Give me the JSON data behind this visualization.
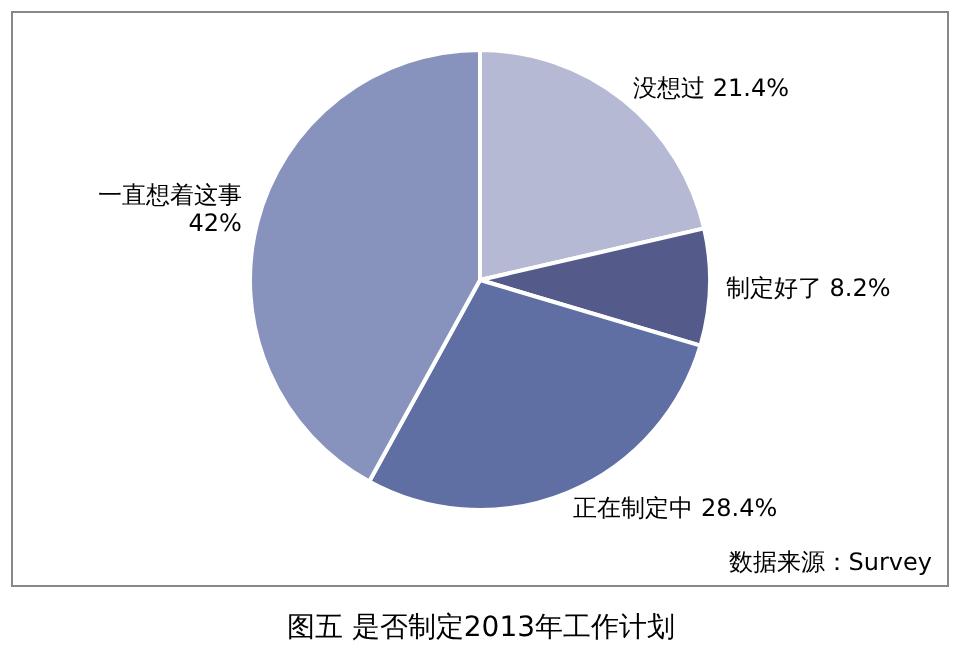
{
  "chart_data": {
    "type": "pie",
    "title": "图五 是否制定2013年工作计划",
    "categories": [
      "没想过",
      "制定好了",
      "正在制定中",
      "一直想着这事"
    ],
    "values": [
      21.4,
      8.2,
      28.4,
      42
    ],
    "colors": [
      "#b5b9d3",
      "#545b8a",
      "#5f6ea3",
      "#8793bd"
    ],
    "value_labels": [
      "21.4%",
      "8.2%",
      "28.4%",
      "42%"
    ],
    "annotations": [
      "数据来源：Survey"
    ]
  }
}
